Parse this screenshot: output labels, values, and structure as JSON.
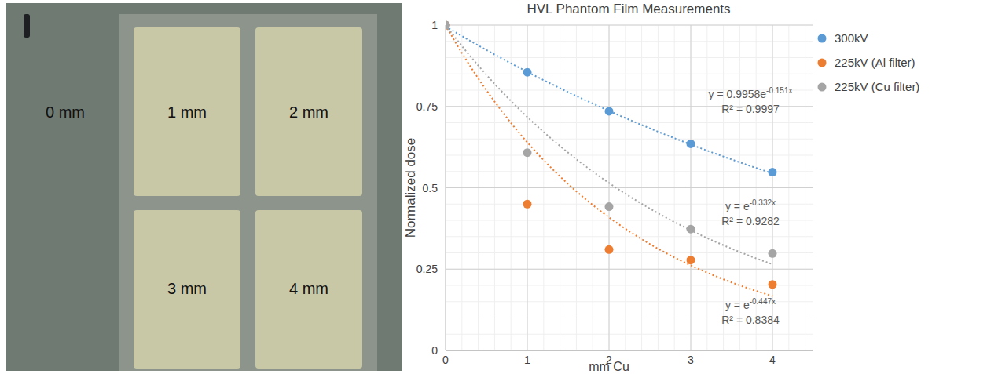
{
  "film": {
    "labels": [
      "0 mm",
      "1 mm",
      "2 mm",
      "3 mm",
      "4 mm"
    ]
  },
  "chart_data": {
    "type": "scatter",
    "title": "HVL Phantom Film Measurements",
    "x_label": "mm Cu",
    "y_label": "Normalized dose",
    "xlim": [
      0,
      4.5
    ],
    "xticks": [
      0,
      1,
      2,
      3,
      4
    ],
    "ylim": [
      0,
      1
    ],
    "yticks": [
      0,
      0.25,
      0.5,
      0.75,
      1
    ],
    "grid": true,
    "legend": "right",
    "marker": "circle",
    "series": [
      {
        "name": "300kV",
        "color": "#5b9bd5",
        "x": [
          0,
          1,
          2,
          3,
          4
        ],
        "values": [
          1,
          0.855,
          0.735,
          0.635,
          0.548
        ],
        "trendline": {
          "a": 0.9958,
          "b": -0.151,
          "line_style": "dotted",
          "equation": "y = 0.9958e",
          "exponent": "-0.151x",
          "r2_label": "R² = 0.9997"
        }
      },
      {
        "name": "225kV (Al filter)",
        "color": "#ed7d31",
        "x": [
          0,
          1,
          2,
          3,
          4
        ],
        "values": [
          1,
          0.45,
          0.31,
          0.278,
          0.203
        ],
        "trendline": {
          "a": 1,
          "b": -0.447,
          "line_style": "dotted",
          "equation": "y = e",
          "exponent": "-0.447x",
          "r2_label": "R² = 0.8384"
        }
      },
      {
        "name": "225kV (Cu filter)",
        "color": "#a5a5a5",
        "x": [
          0,
          1,
          2,
          3,
          4
        ],
        "values": [
          1,
          0.608,
          0.442,
          0.373,
          0.298
        ],
        "trendline": {
          "a": 1,
          "b": -0.332,
          "line_style": "dotted",
          "equation": "y = e",
          "exponent": "-0.332x",
          "r2_label": "R² = 0.9282"
        }
      }
    ]
  }
}
